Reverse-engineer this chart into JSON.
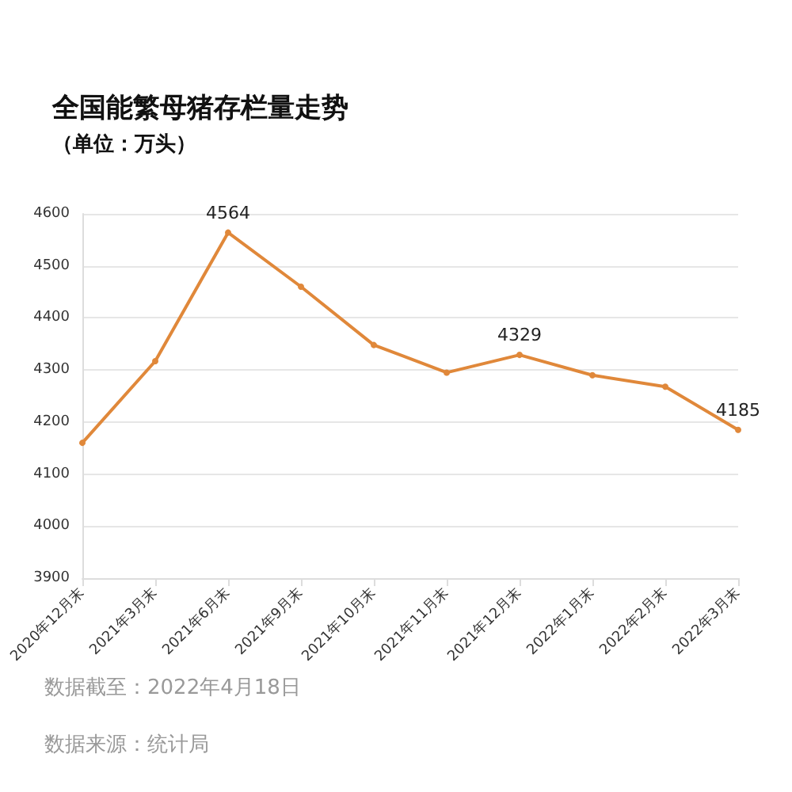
{
  "chart_data": {
    "type": "line",
    "title": "全国能繁母猪存栏量走势",
    "subtitle": "（单位：万头）",
    "categories": [
      "2020年12月末",
      "2021年3月末",
      "2021年6月末",
      "2021年9月末",
      "2021年10月末",
      "2021年11月末",
      "2021年12月末",
      "2022年1月末",
      "2022年2月末",
      "2022年3月末"
    ],
    "series": [
      {
        "color": "#e0883a",
        "values": [
          4160,
          4317,
          4564,
          4460,
          4348,
          4295,
          4329,
          4290,
          4268,
          4185
        ],
        "value_labels": [
          null,
          null,
          "4564",
          null,
          null,
          null,
          "4329",
          null,
          null,
          "4185"
        ]
      }
    ],
    "ylim": [
      3900,
      4600
    ],
    "yticks": [
      3900,
      4000,
      4100,
      4200,
      4300,
      4400,
      4500,
      4600
    ],
    "grid": "y",
    "marker": "circle",
    "line_style": "solid",
    "annotations": [
      "数据截至：2022年4月18日",
      "数据来源：统计局"
    ]
  }
}
